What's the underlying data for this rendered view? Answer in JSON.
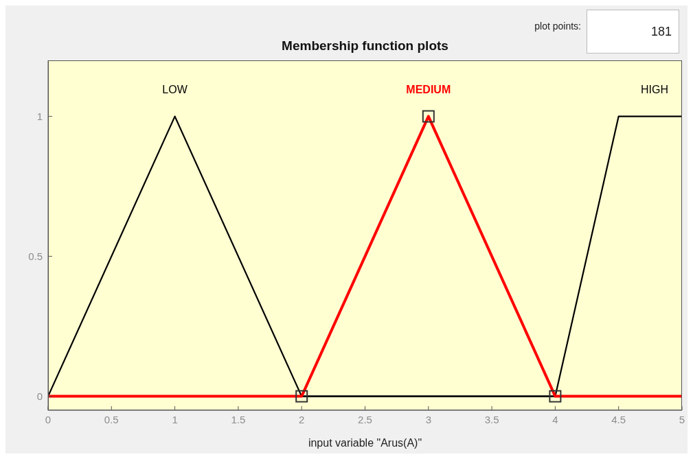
{
  "chart_data": {
    "type": "line",
    "title": "Membership function plots",
    "xlabel": "input variable \"Arus(A)\"",
    "annotations": [
      "plot points:",
      "181"
    ],
    "xlim": [
      0,
      5
    ],
    "xticks": [
      0,
      0.5,
      1,
      1.5,
      2,
      2.5,
      3,
      3.5,
      4,
      4.5,
      5
    ],
    "ylim": [
      -0.05,
      1.2
    ],
    "yticks": [
      0,
      0.5,
      1
    ],
    "grid": false,
    "legend": false,
    "marker": "none",
    "line_style": "solid",
    "series": [
      {
        "name": "LOW",
        "color": "#000000",
        "x": [
          0,
          1,
          2,
          5
        ],
        "values": [
          0,
          1,
          0,
          0
        ]
      },
      {
        "name": "HIGH",
        "color": "#000000",
        "x": [
          0,
          4,
          4.5,
          5
        ],
        "values": [
          0,
          0,
          1,
          1
        ]
      },
      {
        "name": "MEDIUM",
        "color": "#ff0000",
        "x": [
          0,
          2,
          3,
          4,
          5
        ],
        "values": [
          0,
          0,
          1,
          0,
          0
        ]
      },
      {
        "type": "scatter",
        "color": "#333333",
        "marker": "square",
        "x": [
          2,
          3,
          4
        ],
        "values": [
          0,
          1,
          0
        ]
      }
    ]
  }
}
